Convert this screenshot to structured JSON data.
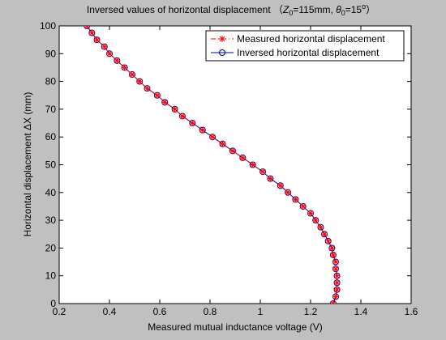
{
  "chart_data": {
    "type": "line",
    "title": {
      "text": "Inversed values of horizontal displacement  （Z0=115mm, θ0=15°）",
      "lead": "Inversed values of horizontal displacement  （",
      "z": "Z",
      "z_sub": "0",
      "z_value": "=115mm, ",
      "theta": "θ",
      "theta_sub": "0",
      "theta_value": "=15",
      "degree": "o",
      "close": "）"
    },
    "xlabel": "Measured mutual inductance voltage (V)",
    "ylabel": "Horizontal displacement ΔX (mm)",
    "xlim": [
      0.2,
      1.6
    ],
    "ylim": [
      0,
      100
    ],
    "x_ticks": [
      0.2,
      0.4,
      0.6,
      0.8,
      1,
      1.2,
      1.4,
      1.6
    ],
    "x_tick_labels": [
      "0.2",
      "0.4",
      "0.6",
      "0.8",
      "1",
      "1.2",
      "1.4",
      "1.6"
    ],
    "y_ticks": [
      0,
      10,
      20,
      30,
      40,
      50,
      60,
      70,
      80,
      90,
      100
    ],
    "y_tick_labels": [
      "0",
      "10",
      "20",
      "30",
      "40",
      "50",
      "60",
      "70",
      "80",
      "90",
      "100"
    ],
    "grid": false,
    "legend_position": "top-right",
    "series": [
      {
        "name": "Measured horizontal displacement",
        "color": "#ff0000",
        "line_style": "dash-dot",
        "marker": "asterisk",
        "x": [
          1.29,
          1.3,
          1.305,
          1.305,
          1.305,
          1.3,
          1.3,
          1.29,
          1.285,
          1.27,
          1.255,
          1.24,
          1.22,
          1.2,
          1.17,
          1.14,
          1.11,
          1.08,
          1.04,
          1.01,
          0.97,
          0.93,
          0.89,
          0.85,
          0.81,
          0.77,
          0.73,
          0.69,
          0.66,
          0.62,
          0.59,
          0.55,
          0.52,
          0.49,
          0.46,
          0.43,
          0.4,
          0.38,
          0.35,
          0.33,
          0.31,
          0.29,
          0.28
        ],
        "y": [
          0,
          2.5,
          5,
          7.5,
          10,
          12.5,
          15,
          17.5,
          20,
          22.5,
          25,
          27.5,
          30,
          32.5,
          35,
          37.5,
          40,
          42.5,
          45,
          47.5,
          50,
          52.5,
          55,
          57.5,
          60,
          62.5,
          65,
          67.5,
          70,
          72.5,
          75,
          77.5,
          80,
          82.5,
          85,
          87.5,
          90,
          92.5,
          95,
          97.5,
          100,
          102.5,
          105
        ]
      },
      {
        "name": "Inversed horizontal displacement",
        "color": "#00008b",
        "line_style": "solid",
        "marker": "circle",
        "x": [
          1.29,
          1.3,
          1.305,
          1.305,
          1.305,
          1.3,
          1.3,
          1.29,
          1.285,
          1.27,
          1.255,
          1.24,
          1.22,
          1.2,
          1.17,
          1.14,
          1.11,
          1.08,
          1.04,
          1.01,
          0.97,
          0.93,
          0.89,
          0.85,
          0.81,
          0.77,
          0.73,
          0.69,
          0.66,
          0.62,
          0.59,
          0.55,
          0.52,
          0.49,
          0.46,
          0.43,
          0.4,
          0.38,
          0.35,
          0.33,
          0.31,
          0.29,
          0.28
        ],
        "y": [
          0,
          2.5,
          5,
          7.5,
          10,
          12.5,
          15,
          17.5,
          20,
          22.5,
          25,
          27.5,
          30,
          32.5,
          35,
          37.5,
          40,
          42.5,
          45,
          47.5,
          50,
          52.5,
          55,
          57.5,
          60,
          62.5,
          65,
          67.5,
          70,
          72.5,
          75,
          77.5,
          80,
          82.5,
          85,
          87.5,
          90,
          92.5,
          95,
          97.5,
          100,
          102.5,
          105
        ]
      }
    ]
  }
}
